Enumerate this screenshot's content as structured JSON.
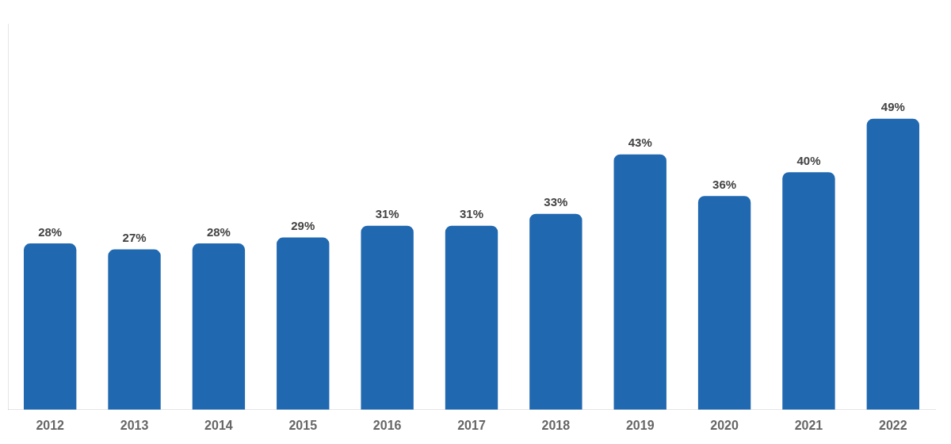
{
  "chart_data": {
    "type": "bar",
    "categories": [
      "2012",
      "2013",
      "2014",
      "2015",
      "2016",
      "2017",
      "2018",
      "2019",
      "2020",
      "2021",
      "2022"
    ],
    "values": [
      28,
      27,
      28,
      29,
      31,
      31,
      33,
      43,
      36,
      40,
      49
    ],
    "value_labels": [
      "28%",
      "27%",
      "28%",
      "29%",
      "31%",
      "31%",
      "33%",
      "43%",
      "36%",
      "40%",
      "49%"
    ],
    "color": "#2068B0",
    "ylim": [
      0,
      65
    ],
    "grid": false,
    "data_labels": true,
    "tick_labels": "x"
  }
}
